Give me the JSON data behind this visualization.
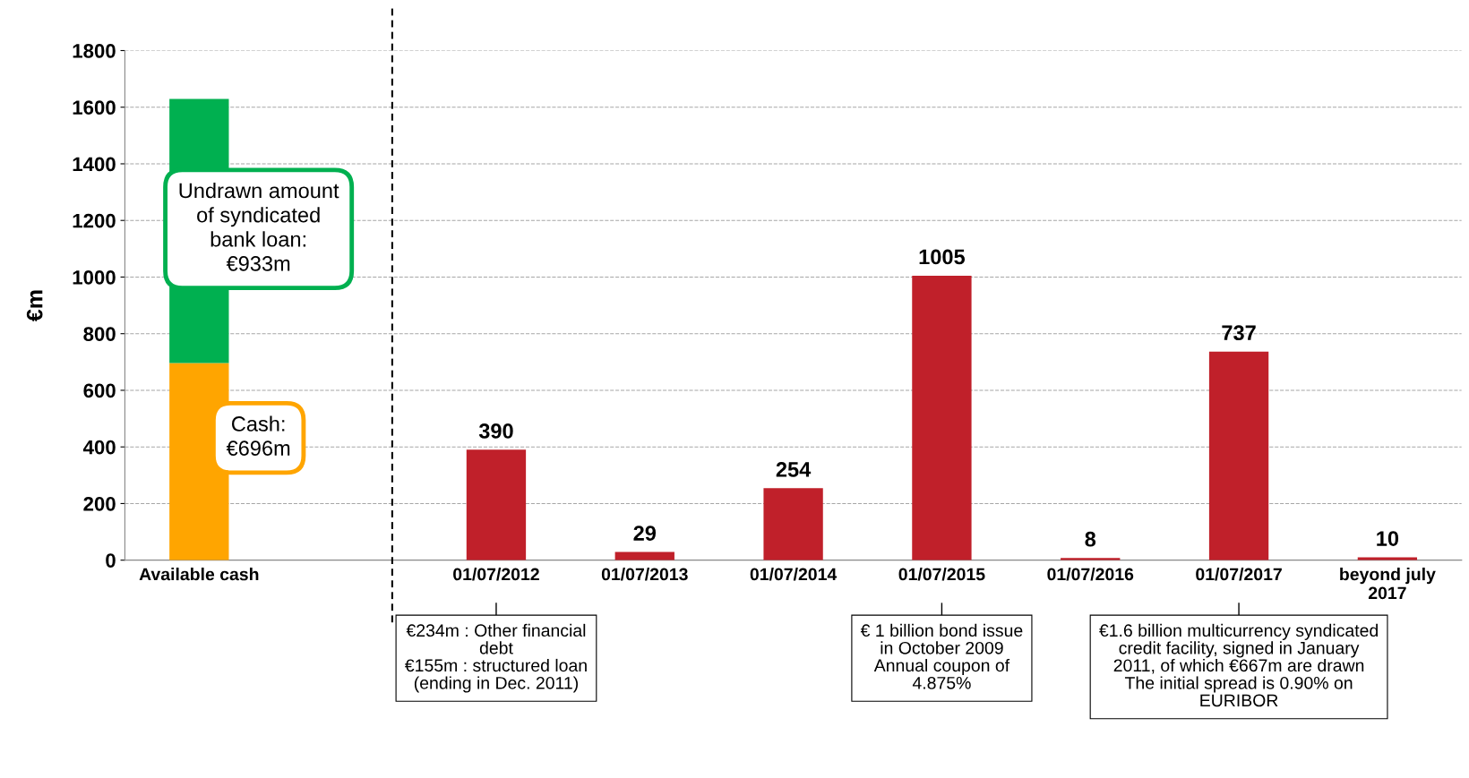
{
  "chart_data": {
    "type": "bar",
    "stacked": true,
    "ylabel": "€m",
    "categories": [
      "Available cash",
      null,
      "01/07/2012",
      "01/07/2013",
      "01/07/2014",
      "01/07/2015",
      "01/07/2016",
      "01/07/2017",
      "beyond july\n2017"
    ],
    "series": [
      {
        "color": "#ffa500",
        "values": [
          696,
          null,
          null,
          null,
          null,
          null,
          null,
          null,
          null
        ]
      },
      {
        "color": "#00b050",
        "values": [
          933,
          null,
          null,
          null,
          null,
          null,
          null,
          null,
          null
        ]
      },
      {
        "color": "#c0202a",
        "values": [
          null,
          null,
          390,
          29,
          254,
          1005,
          8,
          737,
          10
        ],
        "value_labels": [
          null,
          null,
          "390",
          "29",
          "254",
          "1005",
          "8",
          "737",
          "10"
        ]
      }
    ],
    "ylim": [
      0,
      1800
    ],
    "yticks": [
      0,
      200,
      400,
      600,
      800,
      1000,
      1200,
      1400,
      1600,
      1800
    ],
    "grid": "y",
    "annotations": [
      "Undrawn amount\nof syndicated\nbank loan:\n€933m",
      "Cash:\n€696m",
      {
        "text": "€234m : Other financial\ndebt\n€155m : structured loan\n(ending in Dec. 2011)",
        "x": "01/07/2012"
      },
      {
        "text": "€ 1 billion bond issue\nin October 2009\nAnnual coupon of\n4.875%",
        "x": "01/07/2015"
      },
      {
        "text": "€1.6 billion multicurrency syndicated\ncredit facility, signed in January\n2011, of which €667m are drawn\nThe initial spread is 0.90% on\nEURIBOR",
        "x": "01/07/2017"
      }
    ]
  }
}
